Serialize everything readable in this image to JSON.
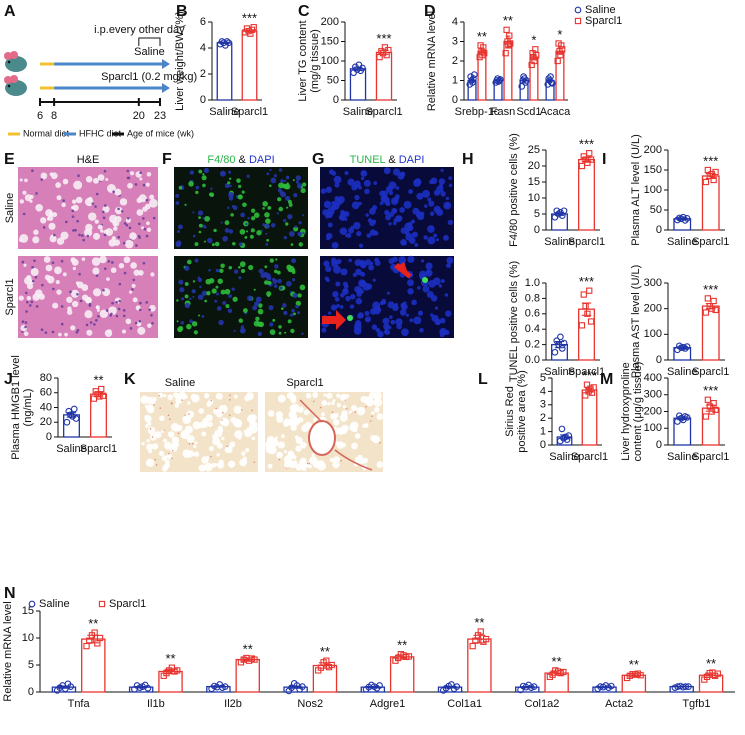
{
  "diagram": {
    "panel": "A",
    "bracket_label": "i.p.every other day",
    "groups": [
      "Saline",
      "Sparcl1 (0.2 mg/kg)"
    ],
    "ages": [
      6,
      8,
      20,
      23
    ],
    "legend": [
      "Normal diet",
      "HFHC diet",
      "Age of mice (wk)"
    ],
    "colors": [
      "#f2c12e",
      "#4a86c8",
      "#111111"
    ]
  },
  "images": {
    "E": {
      "panel": "E",
      "title": "H&E",
      "rows": [
        "Saline",
        "Sparcl1"
      ]
    },
    "F": {
      "panel": "F",
      "stain": "F4/80",
      "joiner": "&",
      "counterstain": "DAPI"
    },
    "G": {
      "panel": "G",
      "stain": "TUNEL",
      "joiner": "&",
      "counterstain": "DAPI"
    },
    "K": {
      "panel": "K",
      "labels": [
        "Saline",
        "Sparcl1"
      ]
    }
  },
  "chart_data": [
    {
      "type": "bar",
      "panel": "B",
      "ylabel": [
        "Liver weight/BW (%)"
      ],
      "categories": [
        "Saline",
        "Sparcl1"
      ],
      "colors": [
        "#1f35a8",
        "#e8342f"
      ],
      "values": [
        4.4,
        5.3
      ],
      "errors": [
        0.05,
        0.08
      ],
      "points": [
        [
          4.3,
          4.5,
          4.4,
          4.2,
          4.5,
          4.4
        ],
        [
          5.2,
          5.5,
          5.3,
          5.1,
          5.4,
          5.6
        ]
      ],
      "significance": "***",
      "ylim": [
        0,
        6
      ],
      "yticks": [
        0,
        2,
        4,
        6
      ]
    },
    {
      "type": "bar",
      "panel": "C",
      "ylabel": [
        "Liver TG content",
        "(mg/g tissue)"
      ],
      "categories": [
        "Saline",
        "Sparcl1"
      ],
      "colors": [
        "#1f35a8",
        "#e8342f"
      ],
      "values": [
        80,
        122
      ],
      "errors": [
        4,
        5
      ],
      "points": [
        [
          70,
          85,
          78,
          90,
          75,
          82
        ],
        [
          110,
          125,
          120,
          135,
          115,
          128
        ]
      ],
      "significance": "***",
      "ylim": [
        0,
        200
      ],
      "yticks": [
        0,
        50,
        100,
        150,
        200
      ]
    },
    {
      "type": "bar",
      "panel": "D",
      "ylabel": [
        "Relative mRNA level"
      ],
      "categories": [
        "Srebp-1c",
        "Fasn",
        "Scd1",
        "Acaca"
      ],
      "legend": "upper right",
      "series": [
        {
          "name": "Saline",
          "color": "#1f35a8",
          "values": [
            1.0,
            1.0,
            1.0,
            1.0
          ],
          "errors": [
            0.08,
            0.03,
            0.07,
            0.06
          ],
          "points": [
            [
              0.8,
              1.2,
              1.0,
              0.9,
              1.1,
              1.3
            ],
            [
              0.9,
              1.0,
              1.1,
              0.95,
              1.0,
              1.05
            ],
            [
              0.7,
              1.0,
              1.2,
              1.1,
              0.9,
              1.0
            ],
            [
              0.8,
              1.1,
              1.0,
              1.2,
              0.9,
              0.85
            ]
          ]
        },
        {
          "name": "Sparcl1",
          "color": "#e8342f",
          "values": [
            2.5,
            3.0,
            2.2,
            2.5
          ],
          "errors": [
            0.15,
            0.28,
            0.14,
            0.16
          ],
          "points": [
            [
              2.2,
              2.8,
              2.5,
              2.3,
              2.7,
              2.4
            ],
            [
              2.4,
              3.6,
              3.0,
              2.8,
              3.3,
              2.9
            ],
            [
              1.8,
              2.4,
              2.2,
              2.0,
              2.6,
              2.3
            ],
            [
              2.0,
              2.9,
              2.5,
              2.3,
              2.8,
              2.6
            ]
          ]
        }
      ],
      "significance": [
        "**",
        "**",
        "*",
        "*"
      ],
      "ylim": [
        0,
        4
      ],
      "yticks": [
        0,
        1,
        2,
        3,
        4
      ]
    },
    {
      "type": "bar",
      "panel": "H",
      "ylabel": [
        "F4/80 positive cells (%)"
      ],
      "categories": [
        "Saline",
        "Sparcl1"
      ],
      "colors": [
        "#1f35a8",
        "#e8342f"
      ],
      "values": [
        5,
        22
      ],
      "errors": [
        0.4,
        0.6
      ],
      "points": [
        [
          4,
          6,
          5,
          5.5,
          4.5,
          6
        ],
        [
          20,
          23,
          22,
          21,
          24,
          22
        ]
      ],
      "significance": "***",
      "ylim": [
        0,
        25
      ],
      "yticks": [
        0,
        5,
        10,
        15,
        20,
        25
      ]
    },
    {
      "type": "bar",
      "ylabel": [
        "TUNEL positive cells (%)"
      ],
      "categories": [
        "Saline",
        "Sparcl1"
      ],
      "colors": [
        "#1f35a8",
        "#e8342f"
      ],
      "values": [
        0.2,
        0.66
      ],
      "errors": [
        0.04,
        0.08
      ],
      "points": [
        [
          0.1,
          0.25,
          0.2,
          0.3,
          0.15,
          0.22
        ],
        [
          0.45,
          0.85,
          0.7,
          0.6,
          0.9,
          0.5
        ]
      ],
      "significance": "***",
      "ylim": [
        0,
        1
      ],
      "yticks": [
        {
          "value": 0,
          "label": "0.0"
        },
        0.2,
        0.4,
        0.6,
        0.8,
        {
          "value": 1,
          "label": "1.0"
        }
      ]
    },
    {
      "type": "bar",
      "panel": "I",
      "ylabel": [
        "Plasma ALT level (U/L)"
      ],
      "categories": [
        "Saline",
        "Sparcl1"
      ],
      "colors": [
        "#1f35a8",
        "#e8342f"
      ],
      "values": [
        28,
        135
      ],
      "errors": [
        2,
        6
      ],
      "points": [
        [
          25,
          30,
          28,
          32,
          24,
          29
        ],
        [
          120,
          150,
          135,
          140,
          125,
          145
        ]
      ],
      "significance": "***",
      "ylim": [
        0,
        200
      ],
      "yticks": [
        0,
        50,
        100,
        150,
        200
      ]
    },
    {
      "type": "bar",
      "ylabel": [
        "Plasma AST level (U/L)"
      ],
      "categories": [
        "Saline",
        "Sparcl1"
      ],
      "colors": [
        "#1f35a8",
        "#e8342f"
      ],
      "values": [
        48,
        210
      ],
      "errors": [
        3,
        10
      ],
      "points": [
        [
          40,
          55,
          48,
          50,
          45,
          52
        ],
        [
          185,
          240,
          210,
          200,
          230,
          195
        ]
      ],
      "significance": "***",
      "ylim": [
        0,
        300
      ],
      "yticks": [
        0,
        100,
        200,
        300
      ]
    },
    {
      "type": "bar",
      "panel": "J",
      "ylabel": [
        "Plasma HMGB1 level",
        "(ng/mL)"
      ],
      "categories": [
        "Saline",
        "Sparcl1"
      ],
      "colors": [
        "#1f35a8",
        "#e8342f"
      ],
      "values": [
        30,
        58
      ],
      "errors": [
        3,
        2.5
      ],
      "points": [
        [
          20,
          35,
          30,
          28,
          38,
          25
        ],
        [
          52,
          62,
          58,
          55,
          65,
          56
        ]
      ],
      "significance": "**",
      "ylim": [
        0,
        80
      ],
      "yticks": [
        0,
        20,
        40,
        60,
        80
      ]
    },
    {
      "type": "bar",
      "panel": "L",
      "ylabel": [
        "Sirius Red",
        "positive area (%)"
      ],
      "categories": [
        "Saline",
        "Sparcl1"
      ],
      "colors": [
        "#1f35a8",
        "#e8342f"
      ],
      "values": [
        0.6,
        4.1
      ],
      "errors": [
        0.15,
        0.15
      ],
      "points": [
        [
          0.3,
          1.2,
          0.5,
          0.6,
          0.4,
          0.7
        ],
        [
          3.7,
          4.5,
          4.0,
          4.2,
          3.9,
          4.3
        ]
      ],
      "significance": "***",
      "ylim": [
        0,
        5
      ],
      "yticks": [
        0,
        1,
        2,
        3,
        4,
        5
      ]
    },
    {
      "type": "bar",
      "panel": "M",
      "ylabel": [
        "Liver hydroxyproline",
        "content (μg/g tissue)"
      ],
      "categories": [
        "Saline",
        "Sparcl1"
      ],
      "colors": [
        "#1f35a8",
        "#e8342f"
      ],
      "values": [
        160,
        220
      ],
      "errors": [
        8,
        18
      ],
      "points": [
        [
          140,
          175,
          160,
          150,
          170,
          165
        ],
        [
          170,
          270,
          230,
          200,
          250,
          210
        ]
      ],
      "significance": "***",
      "ylim": [
        0,
        400
      ],
      "yticks": [
        0,
        100,
        200,
        300,
        400
      ]
    },
    {
      "type": "bar",
      "panel": "N",
      "ylabel": [
        "Relative mRNA level"
      ],
      "categories": [
        "Tnfa",
        "Il1b",
        "Il2b",
        "Nos2",
        "Adgre1",
        "Col1a1",
        "Col1a2",
        "Acta2",
        "Tgfb1"
      ],
      "legend": "upper left",
      "series": [
        {
          "name": "Saline",
          "color": "#1f35a8",
          "values": [
            0.9,
            0.9,
            1.0,
            0.9,
            0.9,
            0.9,
            0.9,
            0.9,
            1.0
          ],
          "errors": [
            0.2,
            0.12,
            0.12,
            0.2,
            0.12,
            0.16,
            0.12,
            0.08,
            0.04
          ],
          "points": [
            [
              0.3,
              0.8,
              1.2,
              0.6,
              1.5,
              1.0
            ],
            [
              0.5,
              1.2,
              0.8,
              1.0,
              1.3,
              0.7
            ],
            [
              0.6,
              1.1,
              0.9,
              1.4,
              0.8,
              1.0
            ],
            [
              0.2,
              0.8,
              1.6,
              1.2,
              0.5,
              1.0
            ],
            [
              0.5,
              0.9,
              1.3,
              1.0,
              0.7,
              1.2
            ],
            [
              0.3,
              0.7,
              1.1,
              1.4,
              0.6,
              1.0
            ],
            [
              0.4,
              1.1,
              0.9,
              1.3,
              0.8,
              1.0
            ],
            [
              0.6,
              1.0,
              0.9,
              1.2,
              0.8,
              1.1
            ],
            [
              0.8,
              1.0,
              1.1,
              0.9,
              1.0,
              1.0
            ]
          ]
        },
        {
          "name": "Sparcl1",
          "color": "#e8342f",
          "values": [
            9.8,
            3.8,
            6.0,
            4.9,
            6.5,
            9.8,
            3.5,
            3.1,
            3.1
          ],
          "errors": [
            0.7,
            0.4,
            0.3,
            0.5,
            0.4,
            0.7,
            0.4,
            0.3,
            0.4
          ],
          "points": [
            [
              8.5,
              9.5,
              10.5,
              11.0,
              9.0,
              10.0
            ],
            [
              3.0,
              3.5,
              4.0,
              4.5,
              3.8,
              4.0
            ],
            [
              5.5,
              6.0,
              6.3,
              5.8,
              6.2,
              6.0
            ],
            [
              4.0,
              4.5,
              5.5,
              5.8,
              4.6,
              5.0
            ],
            [
              5.8,
              6.3,
              7.0,
              6.8,
              6.5,
              6.6
            ],
            [
              8.5,
              9.5,
              10.5,
              11.2,
              9.3,
              9.8
            ],
            [
              2.8,
              3.2,
              4.0,
              3.8,
              3.5,
              3.7
            ],
            [
              2.6,
              3.0,
              3.3,
              3.2,
              3.4,
              3.1
            ],
            [
              2.3,
              2.8,
              3.5,
              3.6,
              3.0,
              3.4
            ]
          ]
        }
      ],
      "significance": [
        "**",
        "**",
        "**",
        "**",
        "**",
        "**",
        "**",
        "**",
        "**"
      ],
      "ylim": [
        0,
        15
      ],
      "yticks": [
        0,
        5,
        10,
        15
      ]
    }
  ]
}
